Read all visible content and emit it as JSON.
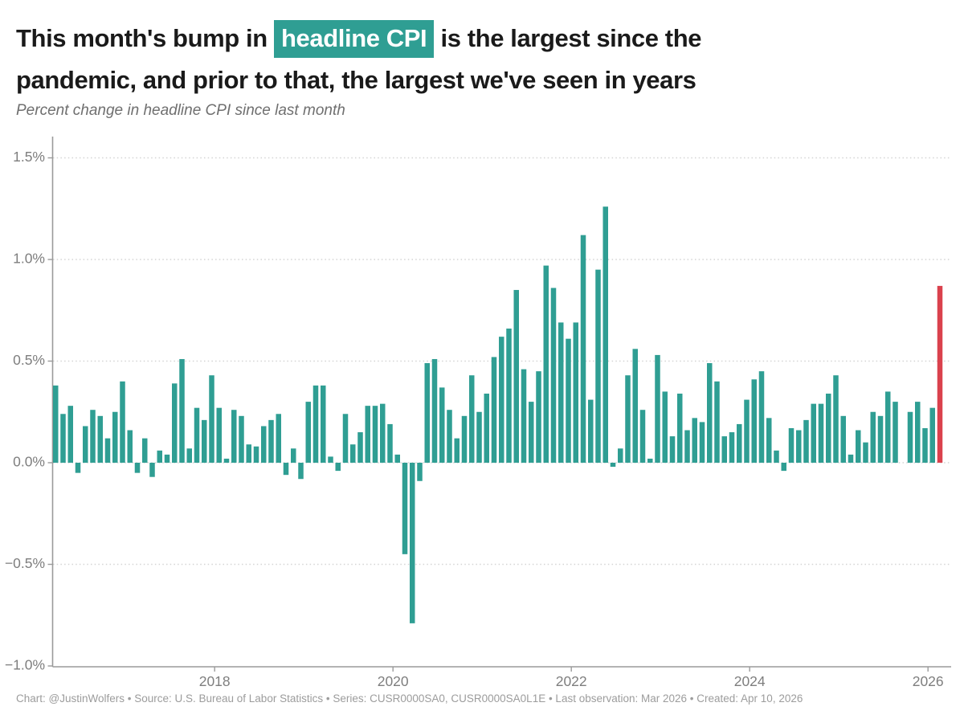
{
  "header": {
    "title_part1": "This month's bump in ",
    "title_highlight": "headline CPI",
    "title_part2": " is the largest since the",
    "title_part3": "pandemic, and prior to that, the largest we've seen in years",
    "subtitle": "Percent change in headline CPI since last month"
  },
  "footer": {
    "credit": "Chart: @JustinWolfers • Source: U.S. Bureau of Labor Statistics • Series: CUSR0000SA0, CUSR0000SA0L1E • Last observation: Mar 2026 • Created: Apr 10, 2026"
  },
  "chart_data": {
    "type": "bar",
    "title": "This month's bump in headline CPI is the largest since the pandemic, and prior to that, the largest we've seen in years",
    "ylabel": "Percent change in headline CPI since last month",
    "unit": "percent",
    "ylim": [
      -1.0,
      1.5
    ],
    "grid": "horizontal-dotted",
    "yticks": [
      1.5,
      1.0,
      0.5,
      0.0,
      -0.5,
      -1.0
    ],
    "ytick_labels": [
      "1.5%",
      "1.0%",
      "0.5%",
      "0.0%",
      "−0.5%",
      "−1.0%"
    ],
    "xtick_labels": [
      "2018",
      "2020",
      "2022",
      "2024",
      "2026"
    ],
    "xtick_month_index": [
      21,
      45,
      69,
      93,
      117
    ],
    "highlight_index": 119,
    "colors": {
      "bar": "#2f9e93",
      "highlight_bar": "#da414d",
      "grid": "#d4d4d4",
      "axis": "#9a9a9a",
      "axis_text": "#7e7e7e"
    },
    "x": [
      "2016-04",
      "2016-05",
      "2016-06",
      "2016-07",
      "2016-08",
      "2016-09",
      "2016-10",
      "2016-11",
      "2016-12",
      "2017-01",
      "2017-02",
      "2017-03",
      "2017-04",
      "2017-05",
      "2017-06",
      "2017-07",
      "2017-08",
      "2017-09",
      "2017-10",
      "2017-11",
      "2017-12",
      "2018-01",
      "2018-02",
      "2018-03",
      "2018-04",
      "2018-05",
      "2018-06",
      "2018-07",
      "2018-08",
      "2018-09",
      "2018-10",
      "2018-11",
      "2018-12",
      "2019-01",
      "2019-02",
      "2019-03",
      "2019-04",
      "2019-05",
      "2019-06",
      "2019-07",
      "2019-08",
      "2019-09",
      "2019-10",
      "2019-11",
      "2019-12",
      "2020-01",
      "2020-02",
      "2020-03",
      "2020-04",
      "2020-05",
      "2020-06",
      "2020-07",
      "2020-08",
      "2020-09",
      "2020-10",
      "2020-11",
      "2020-12",
      "2021-01",
      "2021-02",
      "2021-03",
      "2021-04",
      "2021-05",
      "2021-06",
      "2021-07",
      "2021-08",
      "2021-09",
      "2021-10",
      "2021-11",
      "2021-12",
      "2022-01",
      "2022-02",
      "2022-03",
      "2022-04",
      "2022-05",
      "2022-06",
      "2022-07",
      "2022-08",
      "2022-09",
      "2022-10",
      "2022-11",
      "2022-12",
      "2023-01",
      "2023-02",
      "2023-03",
      "2023-04",
      "2023-05",
      "2023-06",
      "2023-07",
      "2023-08",
      "2023-09",
      "2023-10",
      "2023-11",
      "2023-12",
      "2024-01",
      "2024-02",
      "2024-03",
      "2024-04",
      "2024-05",
      "2024-06",
      "2024-07",
      "2024-08",
      "2024-09",
      "2024-10",
      "2024-11",
      "2024-12",
      "2025-01",
      "2025-02",
      "2025-03",
      "2025-04",
      "2025-05",
      "2025-06",
      "2025-07",
      "2025-08",
      "2025-09",
      "2025-10",
      "2025-11",
      "2025-12",
      "2026-01",
      "2026-02",
      "2026-03"
    ],
    "values": [
      0.38,
      0.24,
      0.28,
      -0.05,
      0.18,
      0.26,
      0.23,
      0.12,
      0.25,
      0.4,
      0.16,
      -0.05,
      0.12,
      -0.07,
      0.06,
      0.04,
      0.39,
      0.51,
      0.07,
      0.27,
      0.21,
      0.43,
      0.27,
      0.02,
      0.26,
      0.23,
      0.09,
      0.08,
      0.18,
      0.21,
      0.24,
      -0.06,
      0.07,
      -0.08,
      0.3,
      0.38,
      0.38,
      0.03,
      -0.04,
      0.24,
      0.09,
      0.15,
      0.28,
      0.28,
      0.29,
      0.19,
      0.04,
      -0.45,
      -0.79,
      -0.09,
      0.49,
      0.51,
      0.37,
      0.26,
      0.12,
      0.23,
      0.43,
      0.25,
      0.34,
      0.52,
      0.62,
      0.66,
      0.85,
      0.46,
      0.3,
      0.45,
      0.97,
      0.86,
      0.69,
      0.61,
      0.69,
      1.12,
      0.31,
      0.95,
      1.26,
      -0.02,
      0.07,
      0.43,
      0.56,
      0.26,
      0.02,
      0.53,
      0.35,
      0.13,
      0.34,
      0.16,
      0.22,
      0.2,
      0.49,
      0.4,
      0.13,
      0.15,
      0.19,
      0.31,
      0.41,
      0.45,
      0.22,
      0.06,
      -0.04,
      0.17,
      0.16,
      0.21,
      0.29,
      0.29,
      0.34,
      0.43,
      0.23,
      0.04,
      0.16,
      0.1,
      0.25,
      0.23,
      0.35,
      0.3,
      0.0,
      0.25,
      0.3,
      0.17,
      0.27,
      0.87
    ]
  }
}
